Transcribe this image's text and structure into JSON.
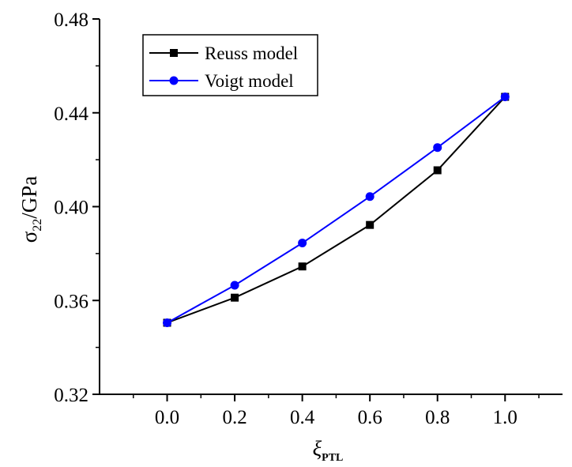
{
  "chart_data": {
    "type": "line",
    "title": "",
    "x": [
      0.0,
      0.2,
      0.4,
      0.6,
      0.8,
      1.0
    ],
    "x_ticks": [
      "0.0",
      "0.2",
      "0.4",
      "0.6",
      "0.8",
      "1.0"
    ],
    "y_ticks": [
      "0.32",
      "0.36",
      "0.40",
      "0.44",
      "0.48"
    ],
    "xlim": [
      -0.2,
      1.17
    ],
    "ylim": [
      0.32,
      0.48
    ],
    "xlabel": {
      "main": "ξ",
      "sub": "PTL"
    },
    "ylabel": {
      "main": "σ",
      "sub": "22",
      "suffix": "/GPa"
    },
    "grid": false,
    "legend_position": "top-left",
    "series": [
      {
        "name": "Reuss model",
        "color": "#000000",
        "marker": "square",
        "values": [
          0.3505,
          0.3612,
          0.3745,
          0.3922,
          0.4155,
          0.4468
        ]
      },
      {
        "name": "Voigt model",
        "color": "#0000ff",
        "marker": "circle",
        "values": [
          0.3505,
          0.3665,
          0.3845,
          0.4043,
          0.4252,
          0.4468
        ]
      }
    ]
  }
}
